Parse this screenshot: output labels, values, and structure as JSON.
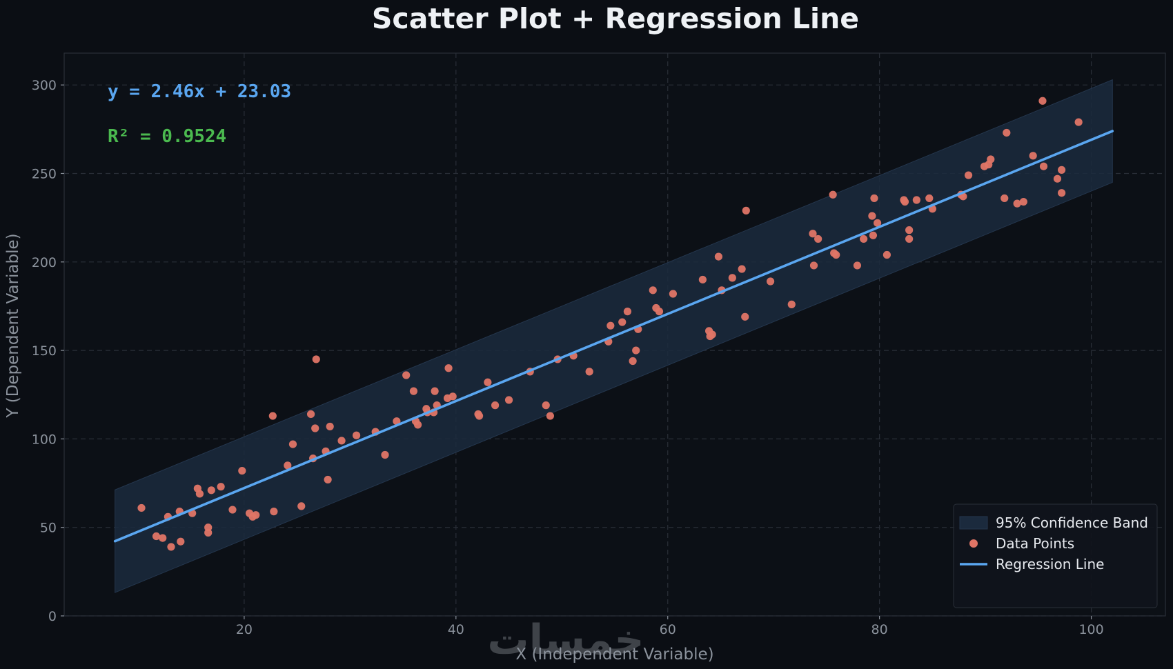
{
  "chart_data": {
    "type": "scatter",
    "title": "Scatter Plot + Regression Line",
    "xlabel": "X  (Independent Variable)",
    "ylabel": "Y  (Dependent Variable)",
    "xlim": [
      3,
      107
    ],
    "ylim": [
      0,
      318
    ],
    "xticks": [
      20,
      40,
      60,
      80,
      100
    ],
    "yticks": [
      0,
      50,
      100,
      150,
      200,
      250,
      300
    ],
    "grid": true,
    "legend_position": "bottom-right",
    "equation_text": "y = 2.46x + 23.03",
    "r2_text": "R² = 0.9524",
    "regression": {
      "slope": 2.46,
      "intercept": 23.03,
      "x_range": [
        7.8,
        102
      ]
    },
    "confidence_band": {
      "half_width": 29,
      "x_range": [
        7.8,
        102
      ]
    },
    "legend": [
      {
        "label": "95% Confidence Band",
        "kind": "band"
      },
      {
        "label": "Data Points",
        "kind": "point"
      },
      {
        "label": "Regression Line",
        "kind": "line"
      }
    ],
    "watermark": "خمسات",
    "colors": {
      "background": "#0b0e14",
      "plot_background": "#0c1016",
      "points": "#e07566",
      "line": "#5aa6f0",
      "band": "#1b2a3d",
      "equation": "#5aa6f0",
      "r2": "#4bba4f"
    },
    "series": [
      {
        "name": "Data Points",
        "points": [
          [
            10.3,
            61
          ],
          [
            11.7,
            45
          ],
          [
            12.3,
            44
          ],
          [
            12.8,
            56
          ],
          [
            13.1,
            39
          ],
          [
            13.9,
            59
          ],
          [
            14.0,
            42
          ],
          [
            15.1,
            58
          ],
          [
            15.6,
            72
          ],
          [
            15.8,
            69
          ],
          [
            16.6,
            47
          ],
          [
            16.6,
            50
          ],
          [
            16.9,
            71
          ],
          [
            17.8,
            73
          ],
          [
            18.9,
            60
          ],
          [
            19.8,
            82
          ],
          [
            20.5,
            58
          ],
          [
            20.8,
            56
          ],
          [
            21.1,
            57
          ],
          [
            22.7,
            113
          ],
          [
            22.8,
            59
          ],
          [
            24.1,
            85
          ],
          [
            24.6,
            97
          ],
          [
            25.4,
            62
          ],
          [
            26.3,
            114
          ],
          [
            26.5,
            89
          ],
          [
            26.7,
            106
          ],
          [
            26.8,
            145
          ],
          [
            27.7,
            93
          ],
          [
            27.9,
            77
          ],
          [
            28.1,
            107
          ],
          [
            29.2,
            99
          ],
          [
            30.6,
            102
          ],
          [
            32.4,
            104
          ],
          [
            33.3,
            91
          ],
          [
            34.4,
            110
          ],
          [
            35.3,
            136
          ],
          [
            36.0,
            127
          ],
          [
            36.2,
            110
          ],
          [
            36.4,
            108
          ],
          [
            37.2,
            117
          ],
          [
            37.3,
            115
          ],
          [
            37.9,
            115
          ],
          [
            38.0,
            127
          ],
          [
            38.2,
            119
          ],
          [
            39.2,
            123
          ],
          [
            39.3,
            140
          ],
          [
            39.7,
            124
          ],
          [
            42.1,
            114
          ],
          [
            42.2,
            113
          ],
          [
            43.0,
            132
          ],
          [
            43.7,
            119
          ],
          [
            45.0,
            122
          ],
          [
            47.0,
            138
          ],
          [
            48.5,
            119
          ],
          [
            48.9,
            113
          ],
          [
            49.6,
            145
          ],
          [
            51.1,
            147
          ],
          [
            52.6,
            138
          ],
          [
            54.4,
            155
          ],
          [
            54.6,
            164
          ],
          [
            55.7,
            166
          ],
          [
            56.2,
            172
          ],
          [
            56.7,
            144
          ],
          [
            57.0,
            150
          ],
          [
            57.2,
            162
          ],
          [
            58.6,
            184
          ],
          [
            58.9,
            174
          ],
          [
            59.2,
            172
          ],
          [
            60.5,
            182
          ],
          [
            63.3,
            190
          ],
          [
            63.9,
            161
          ],
          [
            64.0,
            158
          ],
          [
            64.2,
            159
          ],
          [
            64.8,
            203
          ],
          [
            65.1,
            184
          ],
          [
            66.1,
            191
          ],
          [
            67.0,
            196
          ],
          [
            67.3,
            169
          ],
          [
            67.4,
            229
          ],
          [
            69.7,
            189
          ],
          [
            71.7,
            176
          ],
          [
            73.7,
            216
          ],
          [
            73.8,
            198
          ],
          [
            74.2,
            213
          ],
          [
            75.6,
            238
          ],
          [
            75.7,
            205
          ],
          [
            75.9,
            204
          ],
          [
            77.9,
            198
          ],
          [
            78.5,
            213
          ],
          [
            79.3,
            226
          ],
          [
            79.4,
            215
          ],
          [
            79.5,
            236
          ],
          [
            79.8,
            222
          ],
          [
            80.7,
            204
          ],
          [
            82.3,
            235
          ],
          [
            82.4,
            234
          ],
          [
            82.8,
            213
          ],
          [
            82.8,
            218
          ],
          [
            83.5,
            235
          ],
          [
            84.7,
            236
          ],
          [
            85.0,
            230
          ],
          [
            87.7,
            238
          ],
          [
            87.9,
            237
          ],
          [
            88.4,
            249
          ],
          [
            89.9,
            254
          ],
          [
            90.3,
            255
          ],
          [
            90.5,
            258
          ],
          [
            91.8,
            236
          ],
          [
            92.0,
            273
          ],
          [
            93.0,
            233
          ],
          [
            93.6,
            234
          ],
          [
            94.5,
            260
          ],
          [
            95.4,
            291
          ],
          [
            95.5,
            254
          ],
          [
            96.8,
            247
          ],
          [
            97.2,
            239
          ],
          [
            97.2,
            252
          ],
          [
            98.8,
            279
          ]
        ]
      }
    ]
  }
}
